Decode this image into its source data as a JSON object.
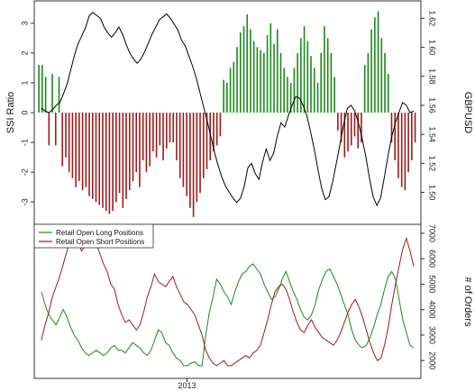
{
  "chart_data": [
    {
      "panel": "top",
      "type": "bar+line",
      "left_axis": {
        "label": "SSI Ratio",
        "ticks": [
          -3,
          -2,
          -1,
          0,
          1,
          2,
          3
        ],
        "range": [
          -3.75,
          3.75
        ]
      },
      "right_axis": {
        "label": "GBPUSD",
        "ticks": [
          "1.50",
          "1.52",
          "1.54",
          "1.56",
          "1.58",
          "1.60",
          "1.62"
        ],
        "range": [
          1.478,
          1.632
        ]
      },
      "bars": {
        "name": "SSI Ratio",
        "positive_color": "#1a8a1a",
        "negative_color": "#9b1b1b",
        "values": [
          1.6,
          1.6,
          1.2,
          -1.1,
          1.3,
          -1.1,
          1.2,
          -1.8,
          -1.5,
          -2.0,
          -2.2,
          -2.5,
          -2.3,
          -2.6,
          -2.5,
          -2.8,
          -2.9,
          -3.0,
          -3.1,
          -3.2,
          -3.3,
          -3.4,
          -3.3,
          -3.0,
          -2.7,
          -3.2,
          -2.9,
          -2.6,
          -2.3,
          -2.0,
          -2.5,
          -1.6,
          -2.0,
          -1.8,
          -1.3,
          -1.5,
          -1.1,
          -1.6,
          -1.2,
          -1.0,
          -1.0,
          -1.6,
          -2.2,
          -2.5,
          -2.8,
          -3.2,
          -3.5,
          -3.0,
          -2.7,
          -2.2,
          -1.9,
          -1.6,
          -1.3,
          -1.1,
          -0.8,
          1.1,
          1.0,
          1.5,
          1.7,
          2.2,
          2.7,
          2.9,
          3.3,
          2.8,
          2.4,
          2.2,
          2.1,
          2.0,
          2.6,
          3.0,
          2.3,
          2.8,
          2.0,
          1.5,
          1.2,
          1.0,
          1.5,
          2.0,
          2.5,
          2.9,
          2.4,
          1.9,
          1.5,
          1.0,
          2.0,
          2.9,
          2.5,
          2.0,
          1.2,
          -0.6,
          -1.0,
          -1.5,
          -1.3,
          -1.1,
          -0.8,
          -1.2,
          -1.0,
          1.6,
          2.0,
          2.8,
          3.2,
          3.4,
          2.5,
          2.0,
          1.3,
          -1.0,
          -1.6,
          -2.2,
          -2.5,
          -2.6,
          -2.0,
          -1.6,
          -1.0
        ],
        "x_start": 0.012,
        "x_end": 0.985,
        "gap_after_index": [],
        "note": ""
      },
      "line": {
        "name": "GBPUSD",
        "color": "#000000",
        "values": [
          1.558,
          1.556,
          1.555,
          1.557,
          1.56,
          1.562,
          1.568,
          1.575,
          1.585,
          1.595,
          1.603,
          1.608,
          1.614,
          1.622,
          1.624,
          1.622,
          1.62,
          1.614,
          1.61,
          1.607,
          1.61,
          1.614,
          1.609,
          1.602,
          1.596,
          1.592,
          1.589,
          1.592,
          1.597,
          1.603,
          1.609,
          1.614,
          1.619,
          1.621,
          1.623,
          1.62,
          1.616,
          1.612,
          1.605,
          1.601,
          1.594,
          1.587,
          1.579,
          1.569,
          1.559,
          1.549,
          1.538,
          1.527,
          1.518,
          1.51,
          1.504,
          1.5,
          1.496,
          1.493,
          1.496,
          1.504,
          1.517,
          1.52,
          1.513,
          1.509,
          1.521,
          1.53,
          1.522,
          1.527,
          1.539,
          1.548,
          1.545,
          1.553,
          1.56,
          1.566,
          1.565,
          1.56,
          1.553,
          1.542,
          1.53,
          1.516,
          1.503,
          1.495,
          1.497,
          1.507,
          1.52,
          1.533,
          1.547,
          1.558,
          1.56,
          1.556,
          1.548,
          1.537,
          1.525,
          1.51,
          1.497,
          1.491,
          1.496,
          1.51,
          1.525,
          1.538,
          1.548,
          1.555,
          1.562,
          1.56,
          1.555,
          1.556
        ]
      }
    },
    {
      "panel": "bottom",
      "type": "line",
      "x_tick_label": "2013",
      "x_tick_position_frac": 0.395,
      "right_axis": {
        "label": "# of Orders",
        "ticks": [
          2000,
          3000,
          4000,
          5000,
          6000,
          7000
        ],
        "range": [
          1300,
          7350
        ]
      },
      "legend": {
        "position": "top-left",
        "entries": [
          "Retail Open Long Positions",
          "Retail Open Short Positions"
        ]
      },
      "series": [
        {
          "name": "Retail Open Long Positions",
          "color": "#1a8a1a",
          "values": [
            4700,
            4200,
            3800,
            3600,
            3400,
            3700,
            4000,
            3700,
            3300,
            3000,
            2800,
            2500,
            2300,
            2200,
            2300,
            2400,
            2300,
            2200,
            2300,
            2500,
            2600,
            2400,
            2400,
            2300,
            2500,
            2700,
            2600,
            2500,
            2300,
            2200,
            2400,
            2800,
            3200,
            3100,
            2700,
            2600,
            2300,
            2100,
            2000,
            1800,
            1800,
            1900,
            1950,
            1800,
            1800,
            3000,
            3900,
            4500,
            5200,
            5000,
            4700,
            4500,
            4200,
            4700,
            5100,
            5400,
            5500,
            5700,
            5800,
            5600,
            5400,
            5000,
            4700,
            4400,
            4500,
            4800,
            5200,
            5500,
            5100,
            4700,
            4400,
            4000,
            3700,
            3600,
            3800,
            4200,
            4800,
            5200,
            5500,
            5600,
            5300,
            5000,
            4600,
            4200,
            3800,
            3200,
            2800,
            2600,
            2500,
            2600,
            2900,
            3300,
            3800,
            4200,
            4800,
            5300,
            5500,
            5200,
            4400,
            3600,
            3100,
            2600,
            2500
          ]
        },
        {
          "name": "Retail Open Short Positions",
          "color": "#9b1b1b",
          "values": [
            2800,
            3400,
            3900,
            4500,
            4900,
            5300,
            5800,
            6300,
            6800,
            7200,
            6700,
            6300,
            6500,
            6700,
            6900,
            6600,
            6200,
            5800,
            5500,
            5000,
            4800,
            4200,
            3800,
            3500,
            3600,
            3400,
            3200,
            3400,
            3900,
            4500,
            4900,
            5400,
            5100,
            5000,
            4900,
            5100,
            5300,
            4900,
            4600,
            4300,
            4200,
            4000,
            3800,
            3400,
            3000,
            2400,
            2100,
            1900,
            1800,
            1900,
            2000,
            1800,
            1800,
            1900,
            2000,
            2100,
            2200,
            2100,
            2300,
            2400,
            2600,
            3100,
            3600,
            4200,
            4700,
            4900,
            5000,
            4800,
            4400,
            3900,
            3500,
            3200,
            3100,
            3400,
            3600,
            3300,
            3100,
            2900,
            2800,
            2700,
            2600,
            2800,
            3100,
            3500,
            3900,
            4200,
            4400,
            4100,
            3700,
            3200,
            2700,
            2300,
            2000,
            2100,
            2600,
            3300,
            4200,
            5000,
            5700,
            6400,
            6800,
            6300,
            5700
          ]
        }
      ]
    }
  ]
}
